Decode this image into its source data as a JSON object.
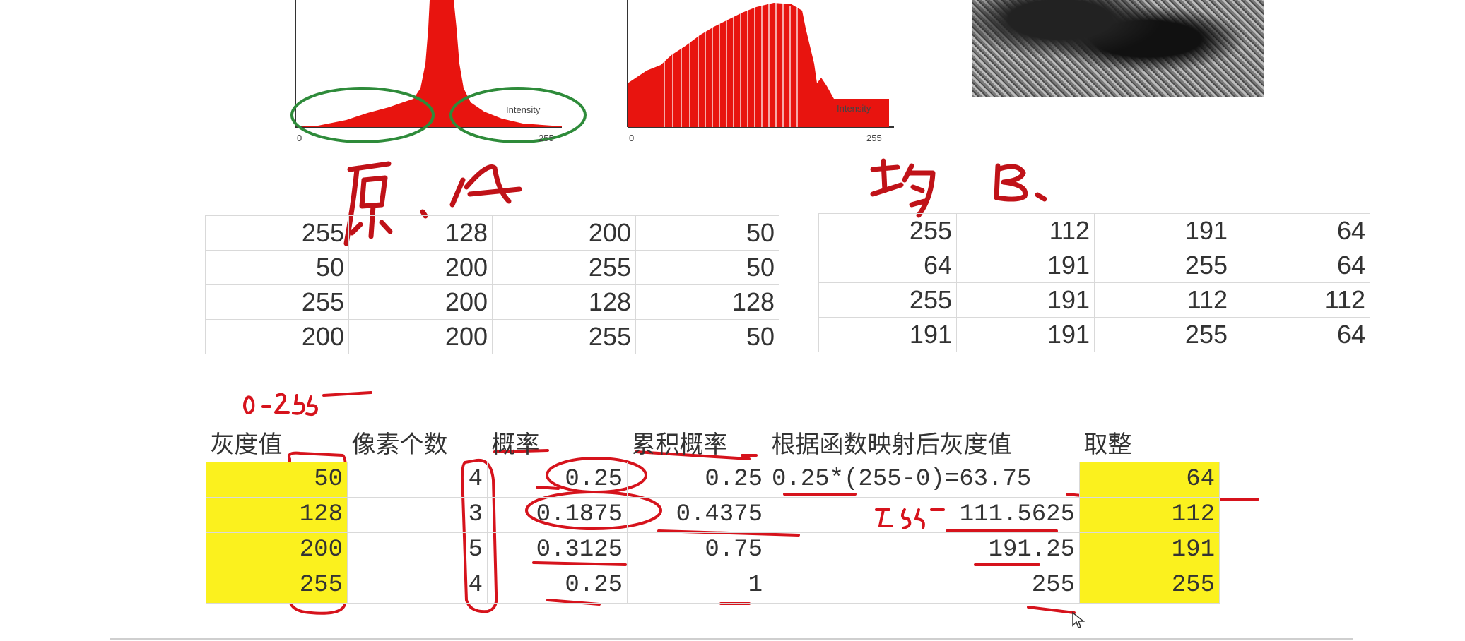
{
  "histograms": {
    "left": {
      "x_min": "0",
      "x_max": "255",
      "axis_label": "Intensity"
    },
    "right": {
      "x_min": "0",
      "x_max": "255",
      "axis_label": "Intensity"
    }
  },
  "grid_a": [
    [
      "255",
      "128",
      "200",
      "50"
    ],
    [
      "50",
      "200",
      "255",
      "50"
    ],
    [
      "255",
      "200",
      "128",
      "128"
    ],
    [
      "200",
      "200",
      "255",
      "50"
    ]
  ],
  "grid_b": [
    [
      "255",
      "112",
      "191",
      "64"
    ],
    [
      "64",
      "191",
      "255",
      "64"
    ],
    [
      "255",
      "191",
      "112",
      "112"
    ],
    [
      "191",
      "191",
      "255",
      "64"
    ]
  ],
  "calc_table": {
    "headers": [
      "灰度值",
      "像素个数",
      "概率",
      "累积概率",
      "根据函数映射后灰度值",
      "取整"
    ],
    "rows": [
      {
        "gray": "50",
        "count": "4",
        "prob": "0.25",
        "cum": "0.25",
        "mapped": "0.25*(255-0)=63.75",
        "round": "64"
      },
      {
        "gray": "128",
        "count": "3",
        "prob": "0.1875",
        "cum": "0.4375",
        "mapped": "111.5625",
        "round": "112"
      },
      {
        "gray": "200",
        "count": "5",
        "prob": "0.3125",
        "cum": "0.75",
        "mapped": "191.25",
        "round": "191"
      },
      {
        "gray": "255",
        "count": "4",
        "prob": "0.25",
        "cum": "1",
        "mapped": "255",
        "round": "255"
      }
    ]
  },
  "colors": {
    "highlight": "#fbf11e",
    "ink": "#d6131c",
    "histogram": "#e8140f"
  }
}
